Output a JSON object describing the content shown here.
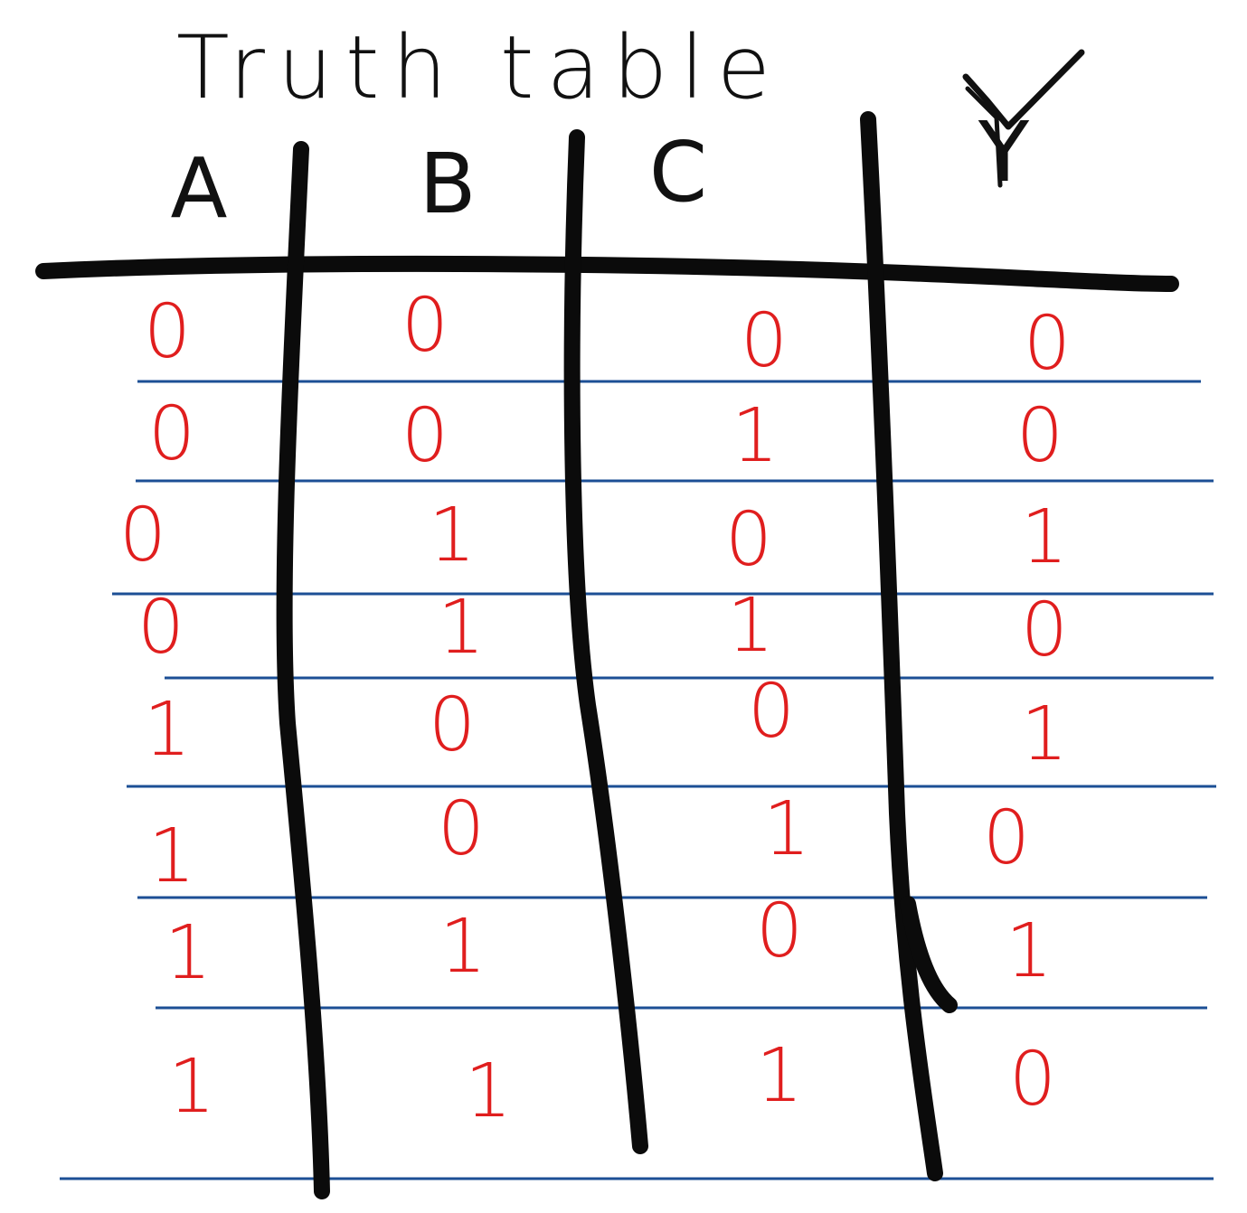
{
  "title": "Truth table",
  "check_mark": "✓",
  "colors": {
    "ink": "#0b0b0b",
    "digits": "#e01e1e",
    "rules": "#1c4f95",
    "background": "#ffffff"
  },
  "table": {
    "headers": [
      "A",
      "B",
      "C",
      "Y"
    ],
    "rows": [
      [
        "0",
        "0",
        "0",
        "0"
      ],
      [
        "0",
        "0",
        "1",
        "0"
      ],
      [
        "0",
        "1",
        "0",
        "1"
      ],
      [
        "0",
        "1",
        "1",
        "0"
      ],
      [
        "1",
        "0",
        "0",
        "1"
      ],
      [
        "1",
        "0",
        "1",
        "0"
      ],
      [
        "1",
        "1",
        "0",
        "1"
      ],
      [
        "1",
        "1",
        "1",
        "0"
      ]
    ]
  }
}
